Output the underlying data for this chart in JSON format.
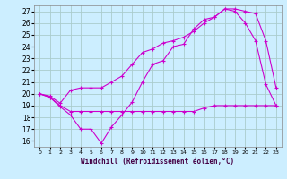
{
  "xlabel": "Windchill (Refroidissement éolien,°C)",
  "bg_color": "#cceeff",
  "grid_color": "#aacccc",
  "line_color": "#cc00cc",
  "xlim": [
    -0.5,
    23.5
  ],
  "ylim": [
    15.5,
    27.5
  ],
  "yticks": [
    16,
    17,
    18,
    19,
    20,
    21,
    22,
    23,
    24,
    25,
    26,
    27
  ],
  "xticks": [
    0,
    1,
    2,
    3,
    4,
    5,
    6,
    7,
    8,
    9,
    10,
    11,
    12,
    13,
    14,
    15,
    16,
    17,
    18,
    19,
    20,
    21,
    22,
    23
  ],
  "line1_x": [
    0,
    1,
    2,
    3,
    4,
    5,
    6,
    7,
    8,
    9,
    10,
    11,
    12,
    13,
    14,
    15,
    16,
    17,
    18,
    19,
    20,
    21,
    22,
    23
  ],
  "line1_y": [
    20.0,
    19.7,
    18.9,
    18.2,
    17.0,
    17.0,
    15.8,
    17.2,
    18.2,
    19.3,
    21.0,
    22.5,
    22.8,
    24.0,
    24.2,
    25.5,
    26.3,
    26.5,
    27.2,
    27.0,
    26.0,
    24.5,
    20.8,
    19.0
  ],
  "line2_x": [
    0,
    1,
    2,
    3,
    4,
    5,
    6,
    7,
    8,
    9,
    10,
    11,
    12,
    13,
    14,
    15,
    16,
    17,
    18,
    19,
    20,
    21,
    22,
    23
  ],
  "line2_y": [
    20.0,
    19.8,
    19.2,
    20.3,
    20.5,
    20.5,
    20.5,
    21.0,
    21.5,
    22.5,
    23.5,
    23.8,
    24.3,
    24.5,
    24.8,
    25.3,
    26.0,
    26.5,
    27.2,
    27.2,
    27.0,
    26.8,
    24.5,
    20.5
  ],
  "line3_x": [
    0,
    1,
    2,
    3,
    4,
    5,
    6,
    7,
    8,
    9,
    10,
    11,
    12,
    13,
    14,
    15,
    16,
    17,
    18,
    19,
    20,
    21,
    22,
    23
  ],
  "line3_y": [
    20.0,
    19.7,
    19.0,
    18.5,
    18.5,
    18.5,
    18.5,
    18.5,
    18.5,
    18.5,
    18.5,
    18.5,
    18.5,
    18.5,
    18.5,
    18.5,
    18.8,
    19.0,
    19.0,
    19.0,
    19.0,
    19.0,
    19.0,
    19.0
  ]
}
